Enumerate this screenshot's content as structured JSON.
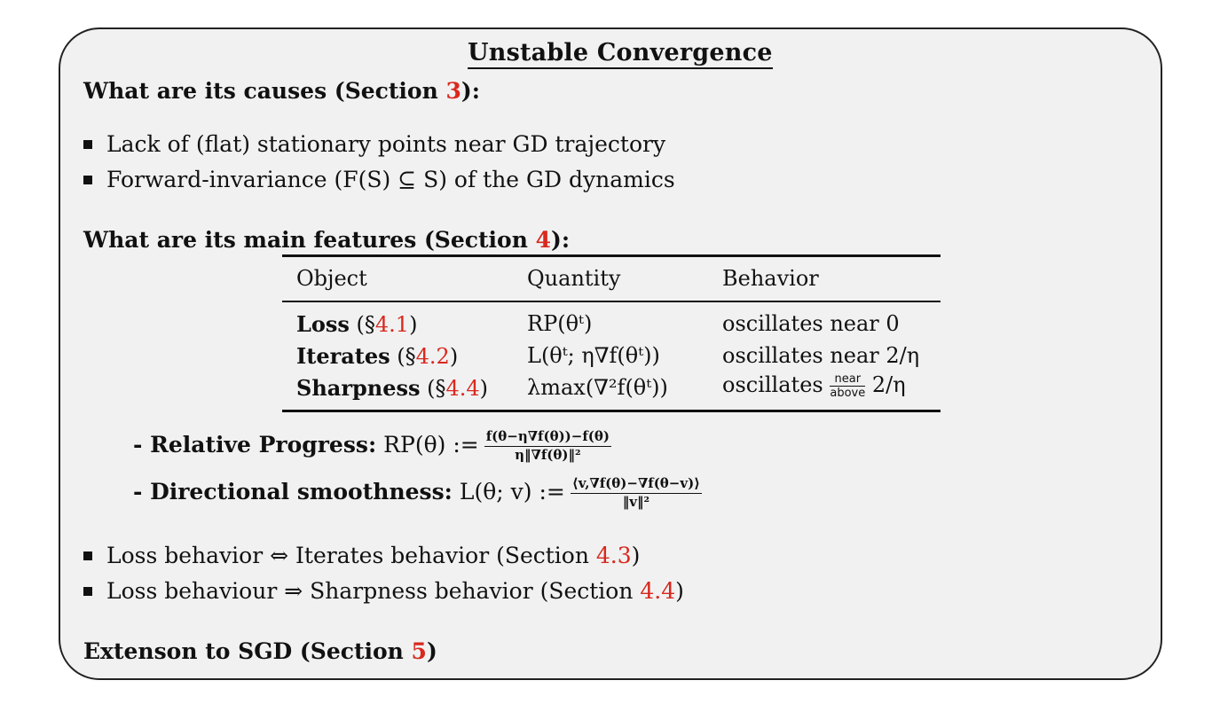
{
  "title": "Unstable Convergence",
  "causes": {
    "heading_prefix": "What are its causes (Section ",
    "heading_ref": "3",
    "heading_suffix": "):",
    "items": [
      "Lack of (flat) stationary points near GD trajectory",
      "Forward-invariance (F(S) ⊆ S) of the GD dynamics"
    ]
  },
  "features": {
    "heading_prefix": "What are its main features (Section ",
    "heading_ref": "4",
    "heading_suffix": "):",
    "table": {
      "headers": [
        "Object",
        "Quantity",
        "Behavior"
      ],
      "rows": [
        {
          "object": "Loss",
          "ref_open": " (§",
          "ref": "4.1",
          "ref_close": ")",
          "quantity": "RP(θᵗ)",
          "behavior": "oscillates near 0"
        },
        {
          "object": "Iterates",
          "ref_open": " (§",
          "ref": "4.2",
          "ref_close": ")",
          "quantity": "L(θᵗ; η∇f(θᵗ))",
          "behavior": "oscillates near 2/η"
        },
        {
          "object": "Sharpness",
          "ref_open": " (§",
          "ref": "4.4",
          "ref_close": ")",
          "quantity": "λmax(∇²f(θᵗ))",
          "behavior": "oscillates",
          "frac_top": "near",
          "frac_bottom": "above",
          "behavior_tail": "2/η"
        }
      ]
    },
    "definitions": [
      {
        "label": "- Relative Progress:",
        "lhs": "RP(θ) :=",
        "numerator": "f(θ−η∇f(θ))−f(θ)",
        "denominator": "η‖∇f(θ)‖²"
      },
      {
        "label": "- Directional smoothness:",
        "lhs": "L(θ; v) :=",
        "numerator": "⟨v,∇f(θ)−∇f(θ−v)⟩",
        "denominator": "‖v‖²"
      }
    ],
    "items": [
      {
        "text": "Loss behavior ⇔ Iterates behavior (Section ",
        "ref": "4.3",
        "close": ")"
      },
      {
        "text": "Loss behaviour ⇒ Sharpness behavior (Section ",
        "ref": "4.4",
        "close": ")"
      }
    ]
  },
  "sgd": {
    "heading_prefix": "Extenson to SGD (Section ",
    "heading_ref": "5",
    "heading_suffix": ")"
  }
}
